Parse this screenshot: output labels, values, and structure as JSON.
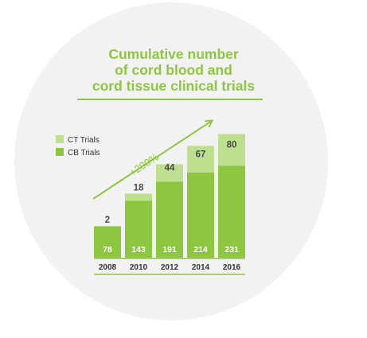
{
  "chart_data": {
    "type": "bar",
    "stacked": true,
    "title": "Cumulative number\nof cord blood and\ncord tissue clinical trials",
    "categories": [
      "2008",
      "2010",
      "2012",
      "2014",
      "2016"
    ],
    "series": [
      {
        "name": "CB Trials",
        "values": [
          78,
          143,
          191,
          214,
          231
        ],
        "color": "#8dc63f"
      },
      {
        "name": "CT Trials",
        "values": [
          2,
          18,
          44,
          67,
          80
        ],
        "color": "#bde08f"
      }
    ],
    "legend": {
      "position": "top-left"
    },
    "annotation": "+290%",
    "grid": false,
    "ylim": [
      0,
      311
    ]
  }
}
